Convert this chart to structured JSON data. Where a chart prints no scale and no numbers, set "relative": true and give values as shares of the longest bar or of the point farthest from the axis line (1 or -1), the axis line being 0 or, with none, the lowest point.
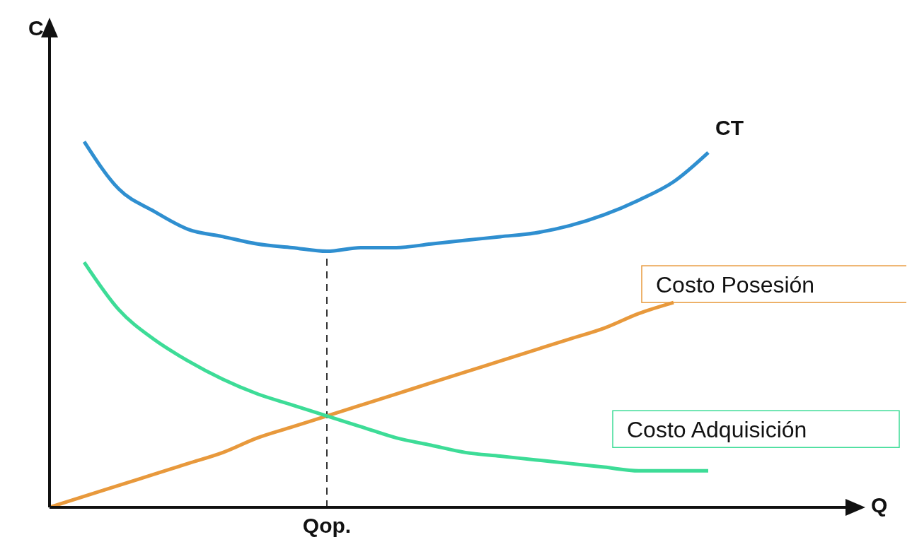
{
  "chart_data": {
    "type": "line",
    "relative": true,
    "xlabel": "Q",
    "ylabel": "C",
    "categories": [
      null,
      null,
      null,
      null,
      null,
      null,
      null,
      null,
      null,
      null,
      null,
      null,
      null,
      null,
      null,
      null,
      null,
      null,
      null,
      null,
      null,
      null,
      null,
      null
    ],
    "series": [
      {
        "name": "CT",
        "color": "#2f8fd0",
        "values": [
          null,
          1,
          0.87,
          0.81,
          0.76,
          0.74,
          0.72,
          0.71,
          0.7,
          0.71,
          0.71,
          0.72,
          0.73,
          0.74,
          0.75,
          0.77,
          0.8,
          0.84,
          0.89,
          0.97,
          null,
          null,
          null,
          null
        ]
      },
      {
        "name": "Costo Posesión",
        "color": "#e8993c",
        "values": [
          0,
          0.03,
          0.06,
          0.09,
          0.12,
          0.15,
          0.19,
          0.22,
          0.25,
          0.28,
          0.31,
          0.34,
          0.37,
          0.4,
          0.43,
          0.46,
          0.49,
          0.53,
          0.56,
          null,
          null,
          null,
          null,
          null
        ]
      },
      {
        "name": "Costo Adquisición",
        "color": "#3ddc97",
        "values": [
          null,
          0.67,
          0.54,
          0.46,
          0.4,
          0.35,
          0.31,
          0.28,
          0.25,
          0.22,
          0.19,
          0.17,
          0.15,
          0.14,
          0.13,
          0.12,
          0.11,
          0.1,
          0.1,
          0.1,
          null,
          null,
          null,
          null
        ]
      }
    ],
    "ref_lines": [
      {
        "axis": "x",
        "value": "Qop.",
        "line_style": "dashed"
      }
    ],
    "legend": false,
    "grid": false,
    "marker": "none",
    "line_style": "solid"
  }
}
